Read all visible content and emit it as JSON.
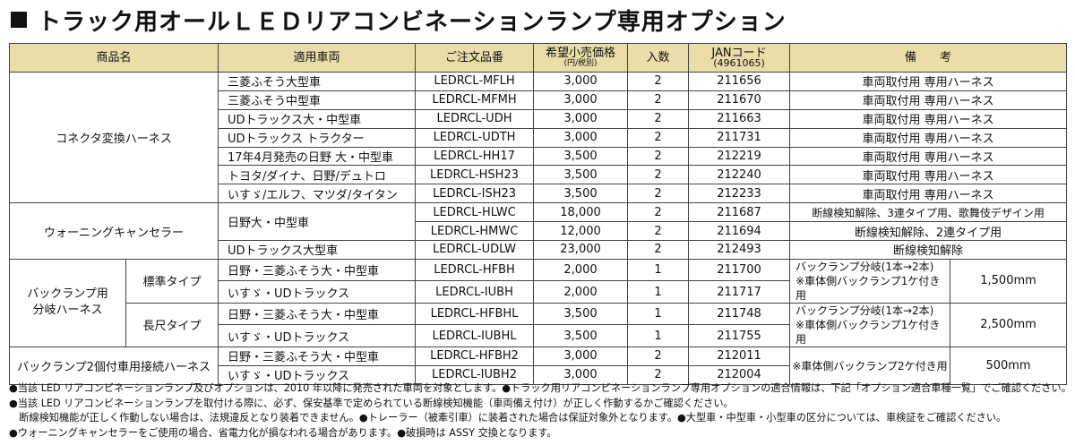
{
  "title": "トラック用オールＬＥＤリアコンビネーションランプ専用オプション",
  "headers": {
    "product": "商品名",
    "vehicle": "適用車両",
    "order": "ご注文品番",
    "price": "希望小売価格",
    "price_sub": "(円/税別)",
    "qty": "入数",
    "jan": "JANコード",
    "jan_sub": "(4961065)",
    "remarks": "備　　考"
  },
  "groups": {
    "connector": "コネクタ変換ハーネス",
    "warning": "ウォーニングキャンセラー",
    "backlamp": "バックランプ用\n分岐ハーネス",
    "standard": "標準タイプ",
    "long": "長尺タイプ",
    "dual": "バックランプ2個付車用接続ハーネス"
  },
  "rows": [
    {
      "vehicle": "三菱ふそう大型車",
      "order": "LEDRCL-MFLH",
      "price": "3,000",
      "qty": "2",
      "jan": "211656",
      "remark": "車両取付用 専用ハーネス"
    },
    {
      "vehicle": "三菱ふそう中型車",
      "order": "LEDRCL-MFMH",
      "price": "3,000",
      "qty": "2",
      "jan": "211670",
      "remark": "車両取付用 専用ハーネス"
    },
    {
      "vehicle": "UDトラックス大・中型車",
      "order": "LEDRCL-UDH",
      "price": "3,000",
      "qty": "2",
      "jan": "211663",
      "remark": "車両取付用 専用ハーネス"
    },
    {
      "vehicle": "UDトラックス トラクター",
      "order": "LEDRCL-UDTH",
      "price": "3,000",
      "qty": "2",
      "jan": "211731",
      "remark": "車両取付用 専用ハーネス"
    },
    {
      "vehicle": "17年4月発売の日野 大・中型車",
      "order": "LEDRCL-HH17",
      "price": "3,500",
      "qty": "2",
      "jan": "212219",
      "remark": "車両取付用 専用ハーネス"
    },
    {
      "vehicle": "トヨタ/ダイナ、日野/デュトロ",
      "order": "LEDRCL-HSH23",
      "price": "3,500",
      "qty": "2",
      "jan": "212240",
      "remark": "車両取付用 専用ハーネス"
    },
    {
      "vehicle": "いすゞ/エルフ、マツダ/タイタン",
      "order": "LEDRCL-ISH23",
      "price": "3,500",
      "qty": "2",
      "jan": "212233",
      "remark": "車両取付用 専用ハーネス"
    },
    {
      "vehicle": "日野大・中型車",
      "order": "LEDRCL-HLWC",
      "price": "18,000",
      "qty": "2",
      "jan": "211687",
      "remark": "断線検知解除、3連タイプ用、歌舞伎デザイン用"
    },
    {
      "order": "LEDRCL-HMWC",
      "price": "12,000",
      "qty": "2",
      "jan": "211694",
      "remark": "断線検知解除、2連タイプ用"
    },
    {
      "vehicle": "UDトラックス大型車",
      "order": "LEDRCL-UDLW",
      "price": "23,000",
      "qty": "2",
      "jan": "212493",
      "remark": "断線検知解除"
    },
    {
      "vehicle": "日野・三菱ふそう大・中型車",
      "order": "LEDRCL-HFBH",
      "price": "2,000",
      "qty": "1",
      "jan": "211700"
    },
    {
      "vehicle": "いすゞ・UDトラックス",
      "order": "LEDRCL-IUBH",
      "price": "2,000",
      "qty": "1",
      "jan": "211717"
    },
    {
      "vehicle": "日野・三菱ふそう大・中型車",
      "order": "LEDRCL-HFBHL",
      "price": "3,500",
      "qty": "1",
      "jan": "211748"
    },
    {
      "vehicle": "いすゞ・UDトラックス",
      "order": "LEDRCL-IUBHL",
      "price": "3,500",
      "qty": "1",
      "jan": "211755"
    },
    {
      "vehicle": "日野・三菱ふそう大・中型車",
      "order": "LEDRCL-HFBH2",
      "price": "3,000",
      "qty": "2",
      "jan": "212011"
    },
    {
      "vehicle": "いすゞ・UDトラックス",
      "order": "LEDRCL-IUBH2",
      "price": "3,000",
      "qty": "2",
      "jan": "212004"
    }
  ],
  "merged_remarks": {
    "standard_note": "バックランプ分岐(1本→2本)\n※車体側バックランプ1ケ付き用",
    "standard_len": "1,500mm",
    "long_note": "バックランプ分岐(1本→2本)\n※車体側バックランプ1ケ付き用",
    "long_len": "2,500mm",
    "dual_note": "※車体側バックランプ2ケ付き用",
    "dual_len": "500mm"
  },
  "notes": [
    "●当該 LED リアコンビネーションランプ及びオプションは、2010 年以降に発売された車両を対象とします。●トラック用リアコンビネーションランプ専用オプションの適合情報は、下記「オプション適合車種一覧」でご確認ください。",
    "●当該 LED リアコンビネーションランプを取付ける際に、必ず、保安基準で定められている断線検知機能（車両備え付け）が正しく作動するかご確認ください。",
    "　断線検知機能が正しく作動しない場合は、法規違反となり装着できません。●トレーラー（被牽引車）に装着された場合は保証対象外となります。●大型車・中型車・小型車の区分については、車検証をご確認ください。",
    "●ウォーニングキャンセラーをご使用の場合、省電力化が損なわれる場合があります。●破損時は ASSY 交換となります。"
  ]
}
